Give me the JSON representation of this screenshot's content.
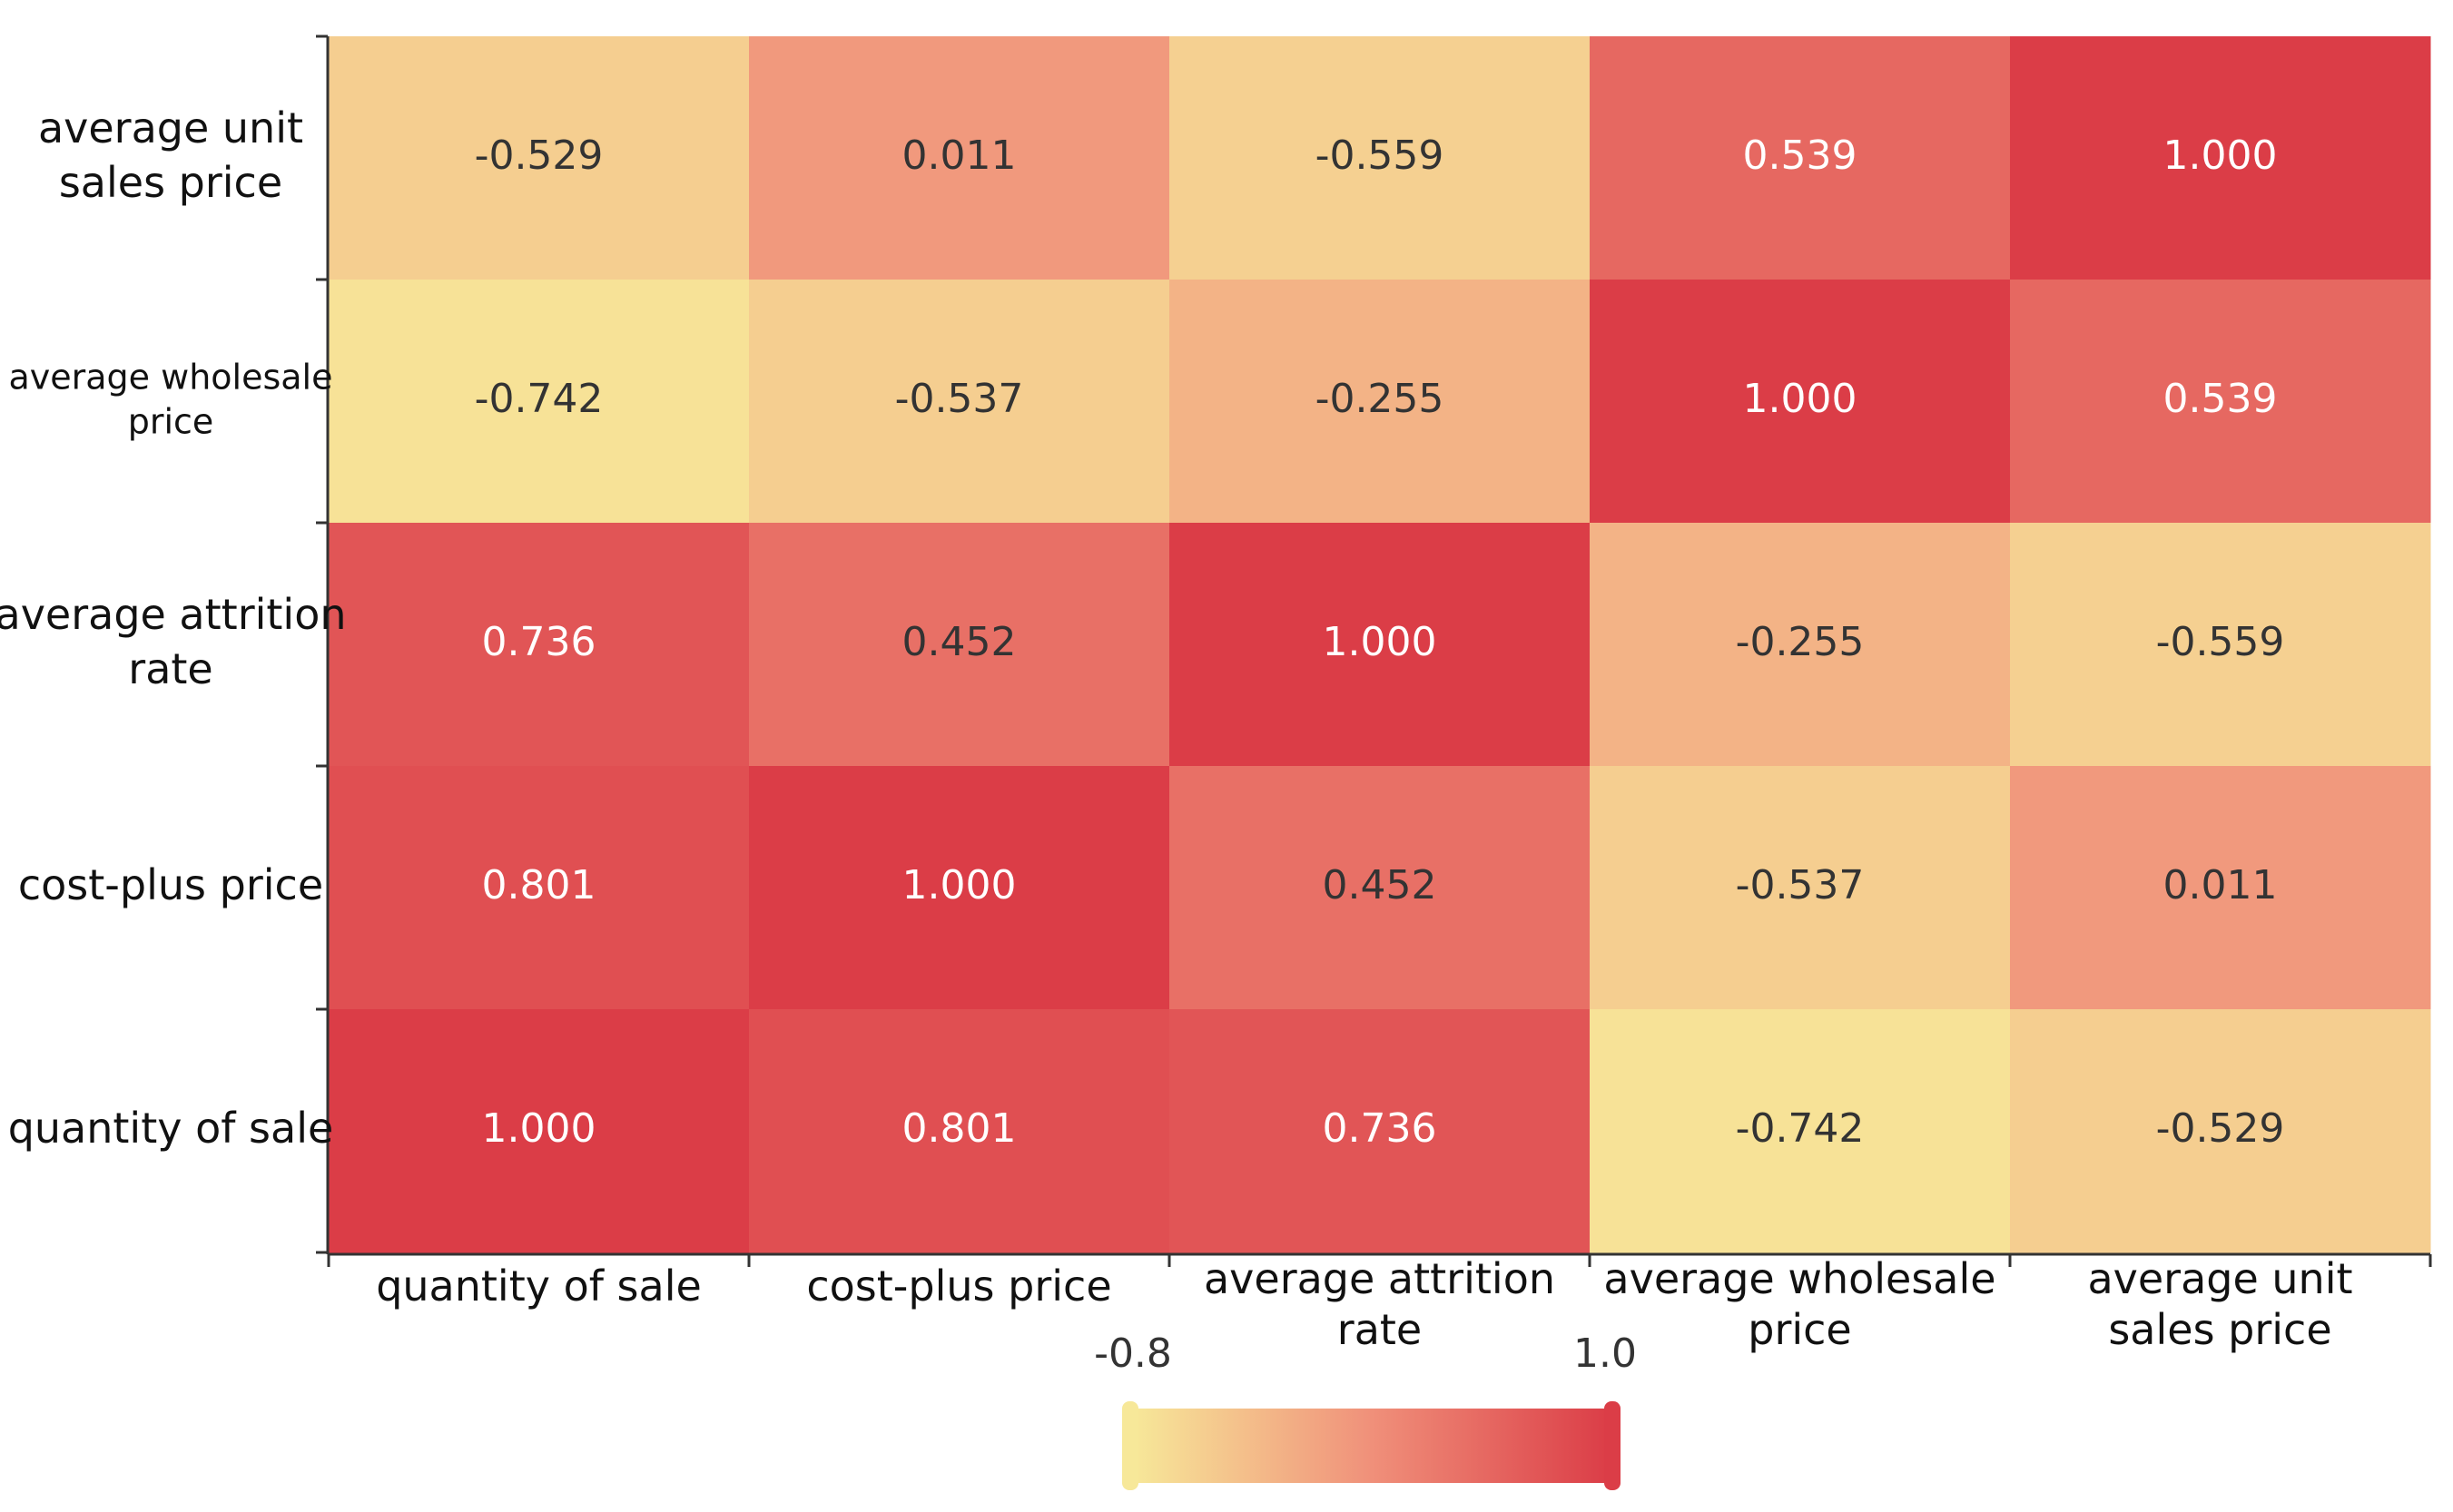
{
  "chart_data": {
    "type": "heatmap",
    "title": "",
    "x_categories": [
      "quantity of sale",
      "cost-plus price",
      "average attrition rate",
      "average wholesale price",
      "average unit sales price"
    ],
    "y_categories_top_to_bottom": [
      "average unit sales price",
      "average wholesale price",
      "average attrition rate",
      "cost-plus price",
      "quantity of sale"
    ],
    "x_label_lines": [
      [
        "quantity of sale"
      ],
      [
        "cost-plus price"
      ],
      [
        "average attrition",
        "rate"
      ],
      [
        "average wholesale",
        "price"
      ],
      [
        "average unit",
        "sales price"
      ]
    ],
    "y_label_lines": [
      [
        "average unit",
        "sales price"
      ],
      [
        "average wholesale",
        "price"
      ],
      [
        "average attrition",
        "rate"
      ],
      [
        "cost-plus price"
      ],
      [
        "quantity of sale"
      ]
    ],
    "values": [
      [
        -0.529,
        0.011,
        -0.559,
        0.539,
        1.0
      ],
      [
        -0.742,
        -0.537,
        -0.255,
        1.0,
        0.539
      ],
      [
        0.736,
        0.452,
        1.0,
        -0.255,
        -0.559
      ],
      [
        0.801,
        1.0,
        0.452,
        -0.537,
        0.011
      ],
      [
        1.0,
        0.801,
        0.736,
        -0.742,
        -0.529
      ]
    ],
    "value_format_decimals": 3,
    "colorbar": {
      "min": -0.8,
      "max": 1.0,
      "min_label": "-0.8",
      "max_label": "1.0",
      "low_color": "#f7e899",
      "mid_color": "#f0907a",
      "high_color": "#db3d47"
    }
  }
}
